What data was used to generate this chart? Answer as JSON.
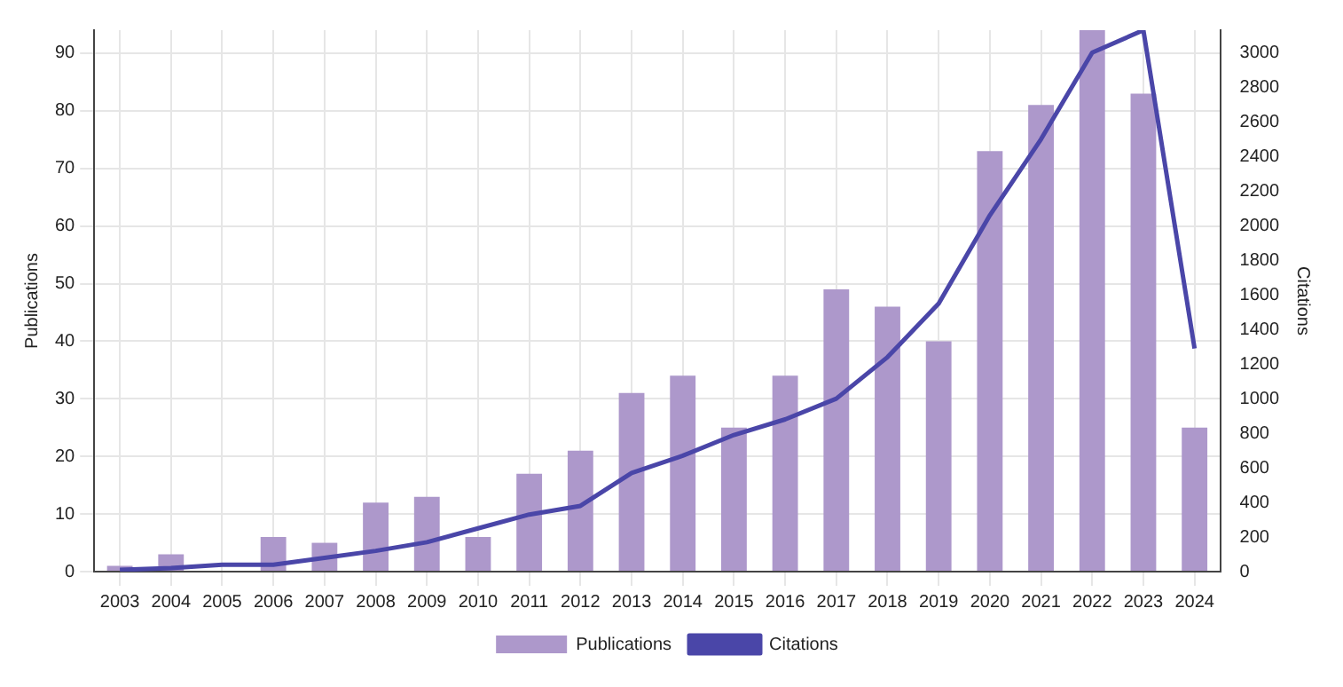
{
  "chart_data": {
    "type": "bar",
    "ylabel": "Publications",
    "y2label": "Citations",
    "categories": [
      "2003",
      "2004",
      "2005",
      "2006",
      "2007",
      "2008",
      "2009",
      "2010",
      "2011",
      "2012",
      "2013",
      "2014",
      "2015",
      "2016",
      "2017",
      "2018",
      "2019",
      "2020",
      "2021",
      "2022",
      "2023",
      "2024"
    ],
    "series": [
      {
        "name": "Publications",
        "color": "#ad98cb",
        "values": [
          1,
          3,
          0,
          6,
          5,
          12,
          13,
          6,
          17,
          21,
          31,
          34,
          25,
          34,
          49,
          46,
          40,
          73,
          81,
          94,
          83,
          25
        ]
      },
      {
        "name": "Citations",
        "type": "line",
        "axis": "y2",
        "color": "#4a46a8",
        "values": [
          10,
          20,
          40,
          40,
          80,
          120,
          170,
          250,
          330,
          380,
          570,
          670,
          790,
          880,
          1000,
          1240,
          1550,
          2060,
          2500,
          3000,
          3130,
          1290
        ]
      }
    ],
    "ylim": [
      0,
      94
    ],
    "yticks": [
      0,
      10,
      20,
      30,
      40,
      50,
      60,
      70,
      80,
      90
    ],
    "y2lim": [
      0,
      3130
    ],
    "y2ticks": [
      0,
      200,
      400,
      600,
      800,
      1000,
      1200,
      1400,
      1600,
      1800,
      2000,
      2200,
      2400,
      2600,
      2800,
      3000
    ],
    "grid": true,
    "legend": "bottom",
    "marker": "none",
    "line_style": "solid"
  }
}
